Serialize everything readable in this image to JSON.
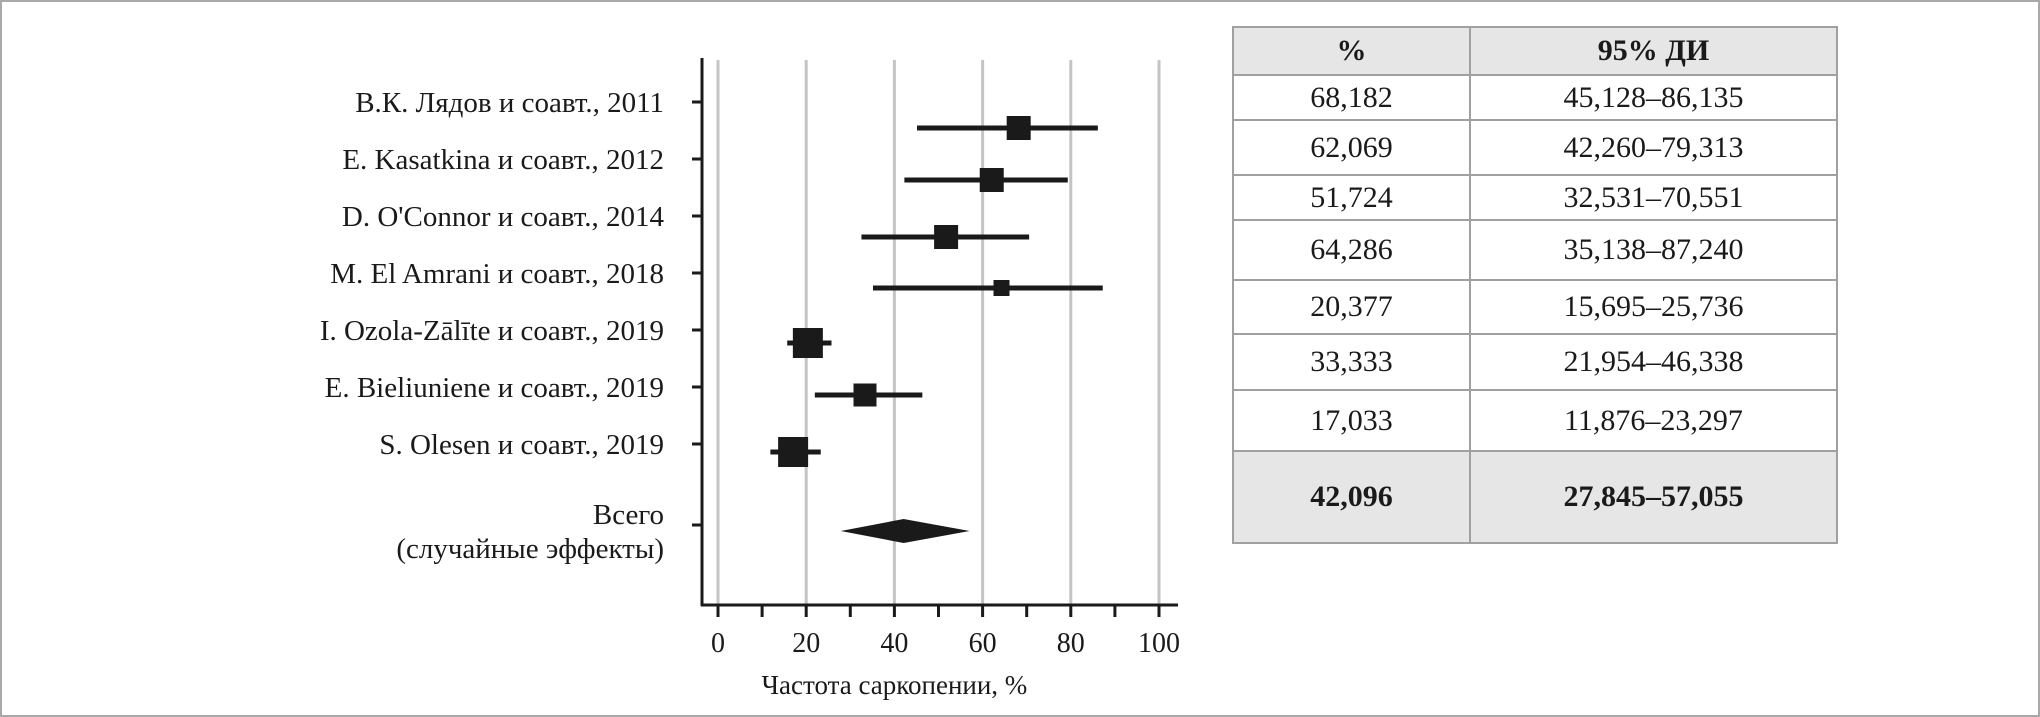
{
  "chart_data": {
    "type": "forest",
    "xlabel": "Частота саркопении, %",
    "xlim": [
      0,
      100
    ],
    "xticks": [
      "0",
      "20",
      "40",
      "60",
      "80",
      "100"
    ],
    "grid": true,
    "studies": [
      {
        "label": "В.К. Лядов и соавт., 2011",
        "estimate": 68.182,
        "ci_low": 45.128,
        "ci_high": 86.135
      },
      {
        "label": "E. Kasatkina и соавт., 2012",
        "estimate": 62.069,
        "ci_low": 42.26,
        "ci_high": 79.313
      },
      {
        "label": "D. O'Connor и соавт., 2014",
        "estimate": 51.724,
        "ci_low": 32.531,
        "ci_high": 70.551
      },
      {
        "label": "M. El Amrani и соавт., 2018",
        "estimate": 64.286,
        "ci_low": 35.138,
        "ci_high": 87.24
      },
      {
        "label": "I. Ozola-Zālīte и соавт., 2019",
        "estimate": 20.377,
        "ci_low": 15.695,
        "ci_high": 25.736
      },
      {
        "label": "E. Bieliuniene и соавт., 2019",
        "estimate": 33.333,
        "ci_low": 21.954,
        "ci_high": 46.338
      },
      {
        "label": "S. Olesen и соавт., 2019",
        "estimate": 17.033,
        "ci_low": 11.876,
        "ci_high": 23.297
      }
    ],
    "total": {
      "label_line1": "Всего",
      "label_line2": "(случайные эффекты)",
      "estimate": 42.096,
      "ci_low": 27.845,
      "ci_high": 57.055
    }
  },
  "table": {
    "headers": [
      "%",
      "95% ДИ"
    ],
    "rows": [
      [
        "68,182",
        "45,128–86,135"
      ],
      [
        "62,069",
        "42,260–79,313"
      ],
      [
        "51,724",
        "32,531–70,551"
      ],
      [
        "64,286",
        "35,138–87,240"
      ],
      [
        "20,377",
        "15,695–25,736"
      ],
      [
        "33,333",
        "21,954–46,338"
      ],
      [
        "17,033",
        "11,876–23,297"
      ]
    ],
    "total": [
      "42,096",
      "27,845–57,055"
    ]
  }
}
